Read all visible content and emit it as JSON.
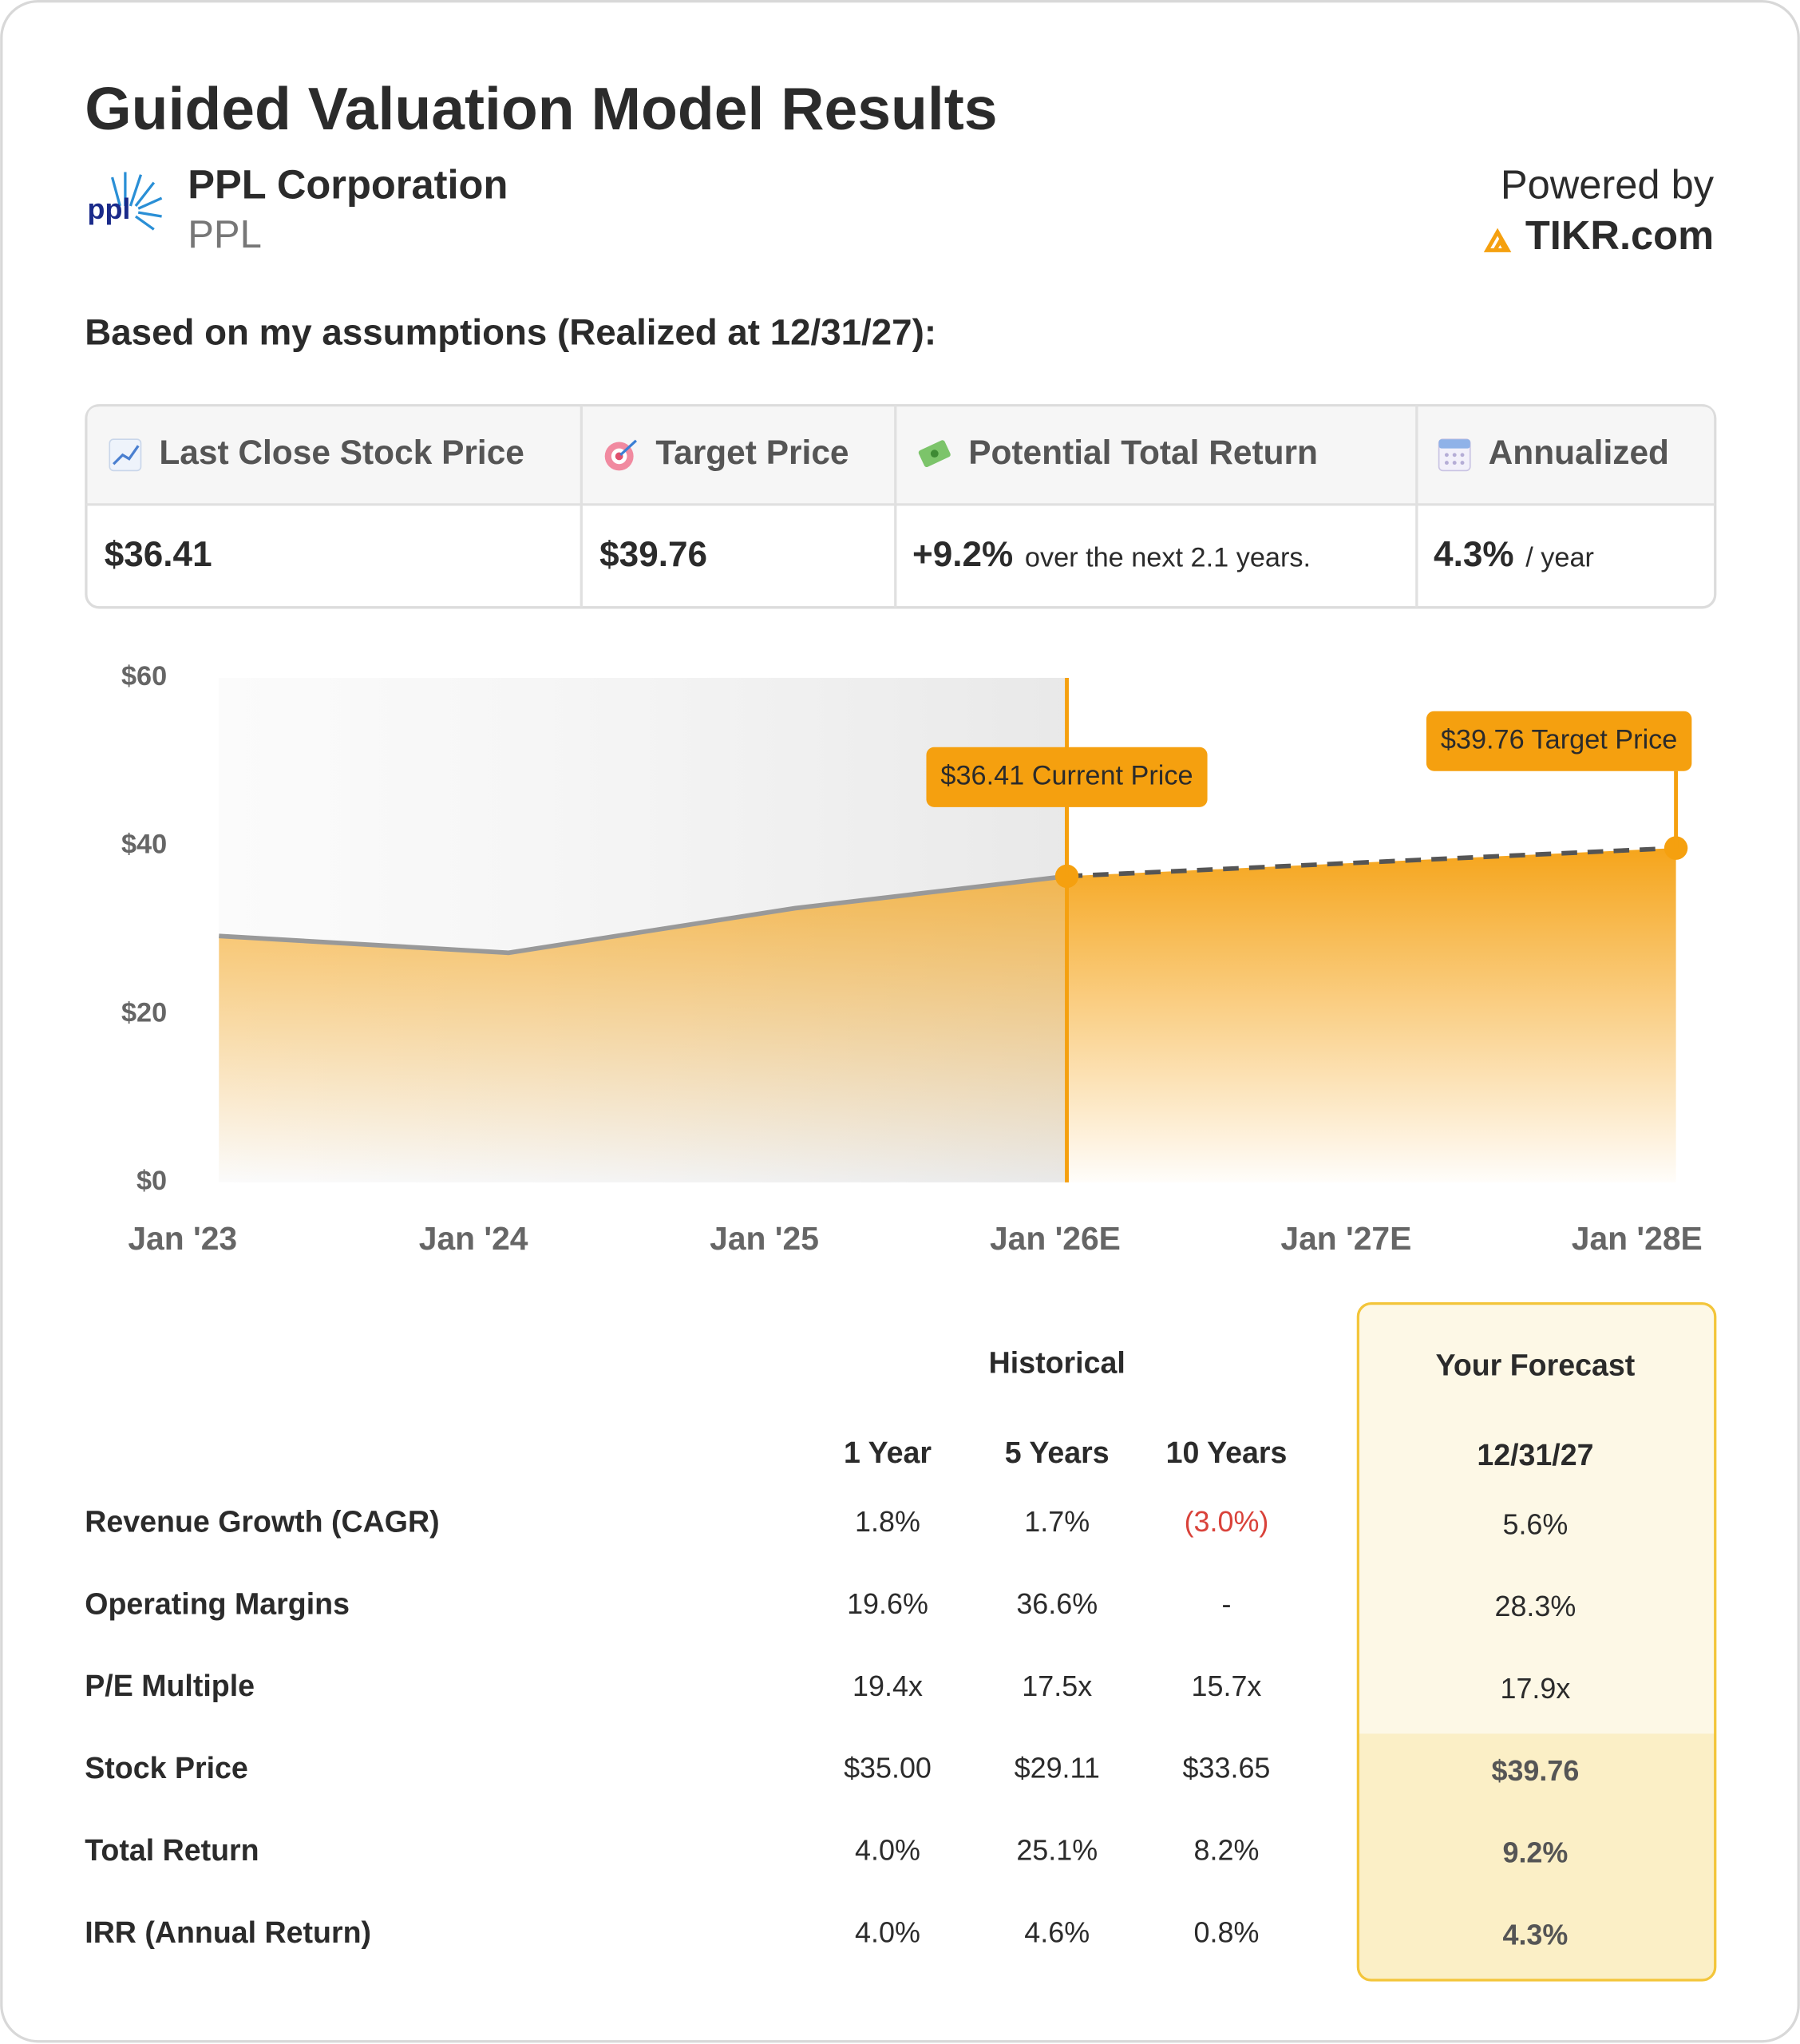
{
  "header": {
    "title": "Guided Valuation Model Results",
    "company": "PPL Corporation",
    "ticker": "PPL",
    "logo_text": "ppl",
    "powered_by": "Powered by",
    "brand": "TIKR.com"
  },
  "assumptions_heading": "Based on my assumptions (Realized at 12/31/27):",
  "summary": [
    {
      "label": "Last Close Stock Price",
      "value": "$36.41"
    },
    {
      "label": "Target Price",
      "value": "$39.76"
    },
    {
      "label": "Potential Total Return",
      "value": "+9.2%",
      "note": "over the next 2.1 years."
    },
    {
      "label": "Annualized",
      "value": "4.3%",
      "note": "/ year"
    }
  ],
  "chart_data": {
    "type": "area",
    "xlim": [
      0,
      5
    ],
    "xticks": [
      {
        "value": 0,
        "label": "Jan '23"
      },
      {
        "value": 1,
        "label": "Jan '24"
      },
      {
        "value": 2,
        "label": "Jan '25"
      },
      {
        "value": 3,
        "label": "Jan '26E"
      },
      {
        "value": 4,
        "label": "Jan '27E"
      },
      {
        "value": 5,
        "label": "Jan '28E"
      }
    ],
    "ylim": [
      0,
      60
    ],
    "yticks": [
      {
        "value": 0,
        "label": "$0"
      },
      {
        "value": 20,
        "label": "$20"
      },
      {
        "value": 40,
        "label": "$40"
      },
      {
        "value": 60,
        "label": "$60"
      }
    ],
    "fill_color": "#f5a00f",
    "series": [
      {
        "color": "#999999",
        "dashed": false,
        "x": [
          0.125,
          1.12,
          2.105,
          3.04
        ],
        "values": [
          29.3,
          27.3,
          32.6,
          36.41
        ]
      },
      {
        "color": "#555555",
        "dashed": true,
        "x": [
          3.04,
          5.134
        ],
        "values": [
          36.41,
          39.76
        ]
      }
    ],
    "annotations": [
      "$36.41 Current Price",
      "$39.76 Target Price"
    ]
  },
  "table": {
    "group_header": "Historical",
    "forecast_header": "Your Forecast",
    "columns": [
      "1 Year",
      "5 Years",
      "10 Years",
      "12/31/27"
    ],
    "rows": [
      [
        "Revenue Growth (CAGR)",
        "1.8%",
        "1.7%",
        "(3.0%)",
        "5.6%"
      ],
      [
        "Operating Margins",
        "19.6%",
        "36.6%",
        "-",
        "28.3%"
      ],
      [
        "P/E Multiple",
        "19.4x",
        "17.5x",
        "15.7x",
        "17.9x"
      ],
      [
        "Stock Price",
        "$35.00",
        "$29.11",
        "$33.65",
        "$39.76"
      ],
      [
        "Total Return",
        "4.0%",
        "25.1%",
        "8.2%",
        "9.2%"
      ],
      [
        "IRR (Annual Return)",
        "4.0%",
        "4.6%",
        "0.8%",
        "4.3%"
      ]
    ]
  }
}
